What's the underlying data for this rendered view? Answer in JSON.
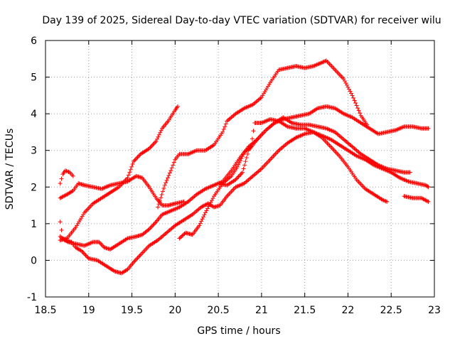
{
  "chart_data": {
    "type": "scatter",
    "title": "Day 139 of 2025, Sidereal Day-to-day VTEC variation (SDTVAR) for receiver wilu",
    "xlabel": "GPS time / hours",
    "ylabel": "SDTVAR / TECUs",
    "xlim": [
      18.5,
      23
    ],
    "ylim": [
      -1,
      6
    ],
    "xticks": [
      "18.5",
      "19",
      "19.5",
      "20",
      "20.5",
      "21",
      "21.5",
      "22",
      "22.5",
      "23"
    ],
    "yticks": [
      "-1",
      "0",
      "1",
      "2",
      "3",
      "4",
      "5",
      "6"
    ],
    "grid": true,
    "marker": "+",
    "color": "#ff0000",
    "series": [
      {
        "name": "track-a",
        "points": [
          [
            18.67,
            2.1
          ],
          [
            18.7,
            2.35
          ],
          [
            18.73,
            2.45
          ],
          [
            18.78,
            2.4
          ],
          [
            18.82,
            2.3
          ]
        ]
      },
      {
        "name": "track-b",
        "points": [
          [
            18.67,
            1.7
          ],
          [
            18.75,
            1.8
          ],
          [
            18.82,
            1.9
          ],
          [
            18.88,
            2.1
          ],
          [
            18.95,
            2.05
          ],
          [
            19.05,
            2.0
          ],
          [
            19.15,
            1.95
          ],
          [
            19.25,
            2.05
          ],
          [
            19.35,
            2.1
          ],
          [
            19.45,
            2.15
          ],
          [
            19.55,
            2.3
          ],
          [
            19.62,
            2.25
          ],
          [
            19.7,
            2.0
          ],
          [
            19.78,
            1.7
          ],
          [
            19.85,
            1.5
          ],
          [
            19.92,
            1.5
          ],
          [
            20.0,
            1.55
          ],
          [
            20.1,
            1.6
          ]
        ]
      },
      {
        "name": "track-c",
        "points": [
          [
            18.67,
            1.05
          ],
          [
            18.7,
            0.6
          ],
          [
            18.76,
            0.5
          ],
          [
            18.85,
            0.45
          ],
          [
            18.95,
            0.4
          ],
          [
            19.05,
            0.5
          ],
          [
            19.12,
            0.5
          ],
          [
            19.18,
            0.35
          ],
          [
            19.25,
            0.3
          ],
          [
            19.35,
            0.45
          ],
          [
            19.45,
            0.6
          ],
          [
            19.55,
            0.65
          ],
          [
            19.62,
            0.7
          ],
          [
            19.7,
            0.85
          ],
          [
            19.78,
            1.05
          ],
          [
            19.85,
            1.25
          ],
          [
            19.95,
            1.35
          ],
          [
            20.05,
            1.45
          ],
          [
            20.15,
            1.6
          ],
          [
            20.25,
            1.8
          ],
          [
            20.35,
            1.95
          ],
          [
            20.45,
            2.05
          ],
          [
            20.55,
            2.15
          ],
          [
            20.65,
            2.45
          ],
          [
            20.75,
            2.8
          ],
          [
            20.85,
            3.1
          ],
          [
            20.95,
            3.3
          ],
          [
            21.05,
            3.55
          ],
          [
            21.15,
            3.75
          ],
          [
            21.25,
            3.85
          ],
          [
            21.35,
            3.9
          ],
          [
            21.45,
            3.95
          ],
          [
            21.55,
            4.0
          ],
          [
            21.65,
            4.15
          ],
          [
            21.75,
            4.2
          ],
          [
            21.85,
            4.15
          ],
          [
            21.95,
            4.0
          ],
          [
            22.05,
            3.9
          ],
          [
            22.15,
            3.75
          ],
          [
            22.25,
            3.6
          ],
          [
            22.35,
            3.45
          ],
          [
            22.45,
            3.5
          ],
          [
            22.55,
            3.55
          ],
          [
            22.65,
            3.65
          ],
          [
            22.75,
            3.65
          ],
          [
            22.85,
            3.6
          ],
          [
            22.93,
            3.6
          ]
        ]
      },
      {
        "name": "track-d",
        "points": [
          [
            18.67,
            0.65
          ],
          [
            18.72,
            0.55
          ],
          [
            18.8,
            0.5
          ],
          [
            18.85,
            0.35
          ],
          [
            18.92,
            0.25
          ],
          [
            19.0,
            0.05
          ],
          [
            19.1,
            0.0
          ],
          [
            19.2,
            -0.15
          ],
          [
            19.3,
            -0.3
          ],
          [
            19.38,
            -0.35
          ],
          [
            19.45,
            -0.25
          ],
          [
            19.52,
            -0.05
          ],
          [
            19.6,
            0.15
          ],
          [
            19.7,
            0.4
          ],
          [
            19.8,
            0.55
          ],
          [
            19.9,
            0.75
          ],
          [
            20.0,
            0.95
          ],
          [
            20.1,
            1.1
          ],
          [
            20.2,
            1.25
          ],
          [
            20.3,
            1.45
          ],
          [
            20.38,
            1.55
          ],
          [
            20.45,
            1.45
          ],
          [
            20.52,
            1.5
          ],
          [
            20.6,
            1.75
          ],
          [
            20.7,
            2.0
          ],
          [
            20.8,
            2.1
          ],
          [
            20.9,
            2.3
          ],
          [
            21.0,
            2.5
          ],
          [
            21.1,
            2.75
          ],
          [
            21.2,
            3.0
          ],
          [
            21.3,
            3.2
          ],
          [
            21.4,
            3.35
          ],
          [
            21.5,
            3.45
          ],
          [
            21.6,
            3.5
          ],
          [
            21.7,
            3.35
          ],
          [
            21.8,
            3.1
          ],
          [
            21.9,
            2.85
          ],
          [
            22.0,
            2.55
          ],
          [
            22.1,
            2.2
          ],
          [
            22.2,
            1.95
          ],
          [
            22.3,
            1.8
          ],
          [
            22.4,
            1.65
          ],
          [
            22.45,
            1.6
          ]
        ]
      },
      {
        "name": "track-e",
        "points": [
          [
            18.67,
            0.55
          ],
          [
            18.75,
            0.6
          ],
          [
            18.85,
            0.9
          ],
          [
            18.95,
            1.3
          ],
          [
            19.05,
            1.55
          ],
          [
            19.15,
            1.7
          ],
          [
            19.25,
            1.85
          ],
          [
            19.35,
            2.0
          ],
          [
            19.45,
            2.25
          ],
          [
            19.52,
            2.7
          ],
          [
            19.6,
            2.9
          ],
          [
            19.7,
            3.05
          ],
          [
            19.78,
            3.25
          ],
          [
            19.85,
            3.6
          ],
          [
            19.92,
            3.8
          ],
          [
            20.0,
            4.1
          ],
          [
            20.03,
            4.2
          ]
        ]
      },
      {
        "name": "track-f",
        "points": [
          [
            19.8,
            1.45
          ],
          [
            19.88,
            2.05
          ],
          [
            19.95,
            2.45
          ],
          [
            20.0,
            2.75
          ],
          [
            20.05,
            2.9
          ],
          [
            20.15,
            2.9
          ],
          [
            20.25,
            3.0
          ],
          [
            20.35,
            3.0
          ],
          [
            20.45,
            3.15
          ],
          [
            20.55,
            3.5
          ],
          [
            20.6,
            3.8
          ],
          [
            20.7,
            4.0
          ],
          [
            20.8,
            4.15
          ],
          [
            20.9,
            4.25
          ],
          [
            21.0,
            4.45
          ],
          [
            21.1,
            4.85
          ],
          [
            21.2,
            5.2
          ],
          [
            21.3,
            5.25
          ],
          [
            21.4,
            5.3
          ],
          [
            21.5,
            5.25
          ],
          [
            21.6,
            5.3
          ],
          [
            21.7,
            5.4
          ],
          [
            21.75,
            5.45
          ],
          [
            21.85,
            5.2
          ],
          [
            21.95,
            4.95
          ],
          [
            22.05,
            4.5
          ],
          [
            22.15,
            3.95
          ],
          [
            22.22,
            3.7
          ]
        ]
      },
      {
        "name": "track-g",
        "points": [
          [
            20.05,
            0.6
          ],
          [
            20.12,
            0.75
          ],
          [
            20.2,
            0.7
          ],
          [
            20.28,
            0.95
          ],
          [
            20.35,
            1.3
          ],
          [
            20.45,
            1.75
          ],
          [
            20.55,
            2.1
          ],
          [
            20.65,
            2.3
          ],
          [
            20.72,
            2.55
          ],
          [
            20.8,
            2.95
          ],
          [
            20.88,
            3.1
          ],
          [
            20.92,
            3.75
          ],
          [
            21.0,
            3.75
          ],
          [
            21.1,
            3.85
          ],
          [
            21.2,
            3.8
          ],
          [
            21.3,
            3.65
          ],
          [
            21.4,
            3.6
          ],
          [
            21.5,
            3.6
          ],
          [
            21.6,
            3.5
          ],
          [
            21.7,
            3.4
          ],
          [
            21.8,
            3.3
          ],
          [
            21.9,
            3.15
          ],
          [
            22.0,
            3.0
          ],
          [
            22.1,
            2.85
          ],
          [
            22.2,
            2.75
          ],
          [
            22.3,
            2.6
          ],
          [
            22.4,
            2.5
          ],
          [
            22.5,
            2.4
          ],
          [
            22.6,
            2.25
          ],
          [
            22.7,
            2.15
          ],
          [
            22.8,
            2.1
          ],
          [
            22.9,
            2.05
          ],
          [
            22.93,
            2.0
          ]
        ]
      },
      {
        "name": "track-h",
        "points": [
          [
            20.5,
            2.1
          ],
          [
            20.6,
            2.05
          ],
          [
            20.7,
            2.2
          ],
          [
            20.78,
            2.4
          ],
          [
            20.85,
            3.0
          ],
          [
            20.95,
            3.3
          ],
          [
            21.05,
            3.55
          ],
          [
            21.15,
            3.75
          ],
          [
            21.25,
            3.9
          ],
          [
            21.35,
            3.75
          ],
          [
            21.45,
            3.7
          ],
          [
            21.55,
            3.7
          ],
          [
            21.65,
            3.65
          ],
          [
            21.75,
            3.6
          ],
          [
            21.85,
            3.5
          ],
          [
            21.95,
            3.3
          ],
          [
            22.05,
            3.1
          ],
          [
            22.15,
            2.9
          ],
          [
            22.25,
            2.75
          ],
          [
            22.35,
            2.6
          ],
          [
            22.45,
            2.5
          ],
          [
            22.55,
            2.45
          ],
          [
            22.65,
            2.4
          ],
          [
            22.72,
            2.4
          ]
        ]
      },
      {
        "name": "track-i",
        "points": [
          [
            22.65,
            1.75
          ],
          [
            22.75,
            1.7
          ],
          [
            22.85,
            1.7
          ],
          [
            22.93,
            1.6
          ]
        ]
      }
    ]
  }
}
